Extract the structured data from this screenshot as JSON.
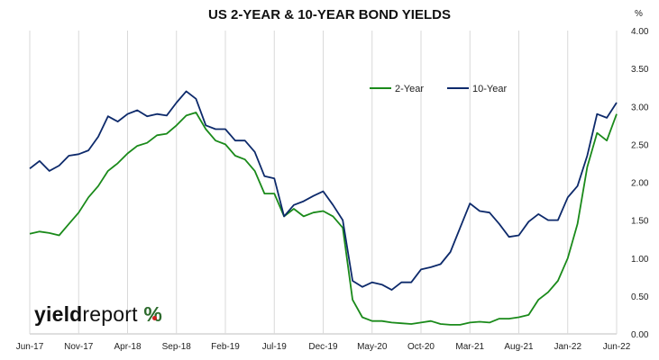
{
  "chart_data": {
    "type": "line",
    "title": "US 2-YEAR & 10-YEAR BOND YIELDS",
    "y_unit": "%",
    "xlabel": "",
    "ylabel": "",
    "ylim": [
      0,
      4
    ],
    "y_ticks": [
      "0.00",
      "0.50",
      "1.00",
      "1.50",
      "2.00",
      "2.50",
      "3.00",
      "3.50",
      "4.00"
    ],
    "x_ticks": [
      "Jun-17",
      "Nov-17",
      "Apr-18",
      "Sep-18",
      "Feb-19",
      "Jul-19",
      "Dec-19",
      "May-20",
      "Oct-20",
      "Mar-21",
      "Aug-21",
      "Jan-22",
      "Jun-22"
    ],
    "grid": "vertical only",
    "legend_position": "top-right",
    "series": [
      {
        "name": "2-Year",
        "color": "#1a8a1a",
        "points": [
          [
            "2017-06",
            1.32
          ],
          [
            "2017-07",
            1.35
          ],
          [
            "2017-08",
            1.33
          ],
          [
            "2017-09",
            1.3
          ],
          [
            "2017-10",
            1.45
          ],
          [
            "2017-11",
            1.6
          ],
          [
            "2017-12",
            1.8
          ],
          [
            "2018-01",
            1.95
          ],
          [
            "2018-02",
            2.15
          ],
          [
            "2018-03",
            2.25
          ],
          [
            "2018-04",
            2.38
          ],
          [
            "2018-05",
            2.48
          ],
          [
            "2018-06",
            2.52
          ],
          [
            "2018-07",
            2.62
          ],
          [
            "2018-08",
            2.64
          ],
          [
            "2018-09",
            2.75
          ],
          [
            "2018-10",
            2.88
          ],
          [
            "2018-11",
            2.92
          ],
          [
            "2018-12",
            2.7
          ],
          [
            "2019-01",
            2.55
          ],
          [
            "2019-02",
            2.5
          ],
          [
            "2019-03",
            2.35
          ],
          [
            "2019-04",
            2.3
          ],
          [
            "2019-05",
            2.15
          ],
          [
            "2019-06",
            1.85
          ],
          [
            "2019-07",
            1.85
          ],
          [
            "2019-08",
            1.55
          ],
          [
            "2019-09",
            1.65
          ],
          [
            "2019-10",
            1.55
          ],
          [
            "2019-11",
            1.6
          ],
          [
            "2019-12",
            1.62
          ],
          [
            "2020-01",
            1.55
          ],
          [
            "2020-02",
            1.4
          ],
          [
            "2020-03",
            0.45
          ],
          [
            "2020-04",
            0.22
          ],
          [
            "2020-05",
            0.17
          ],
          [
            "2020-06",
            0.17
          ],
          [
            "2020-07",
            0.15
          ],
          [
            "2020-08",
            0.14
          ],
          [
            "2020-09",
            0.13
          ],
          [
            "2020-10",
            0.15
          ],
          [
            "2020-11",
            0.17
          ],
          [
            "2020-12",
            0.13
          ],
          [
            "2021-01",
            0.12
          ],
          [
            "2021-02",
            0.12
          ],
          [
            "2021-03",
            0.15
          ],
          [
            "2021-04",
            0.16
          ],
          [
            "2021-05",
            0.15
          ],
          [
            "2021-06",
            0.2
          ],
          [
            "2021-07",
            0.2
          ],
          [
            "2021-08",
            0.22
          ],
          [
            "2021-09",
            0.25
          ],
          [
            "2021-10",
            0.45
          ],
          [
            "2021-11",
            0.55
          ],
          [
            "2021-12",
            0.7
          ],
          [
            "2022-01",
            1.0
          ],
          [
            "2022-02",
            1.45
          ],
          [
            "2022-03",
            2.2
          ],
          [
            "2022-04",
            2.65
          ],
          [
            "2022-05",
            2.55
          ],
          [
            "2022-06",
            2.9
          ]
        ]
      },
      {
        "name": "10-Year",
        "color": "#0d2a6b",
        "points": [
          [
            "2017-06",
            2.18
          ],
          [
            "2017-07",
            2.28
          ],
          [
            "2017-08",
            2.15
          ],
          [
            "2017-09",
            2.22
          ],
          [
            "2017-10",
            2.35
          ],
          [
            "2017-11",
            2.37
          ],
          [
            "2017-12",
            2.42
          ],
          [
            "2018-01",
            2.6
          ],
          [
            "2018-02",
            2.87
          ],
          [
            "2018-03",
            2.8
          ],
          [
            "2018-04",
            2.9
          ],
          [
            "2018-05",
            2.95
          ],
          [
            "2018-06",
            2.87
          ],
          [
            "2018-07",
            2.9
          ],
          [
            "2018-08",
            2.88
          ],
          [
            "2018-09",
            3.05
          ],
          [
            "2018-10",
            3.2
          ],
          [
            "2018-11",
            3.1
          ],
          [
            "2018-12",
            2.75
          ],
          [
            "2019-01",
            2.7
          ],
          [
            "2019-02",
            2.7
          ],
          [
            "2019-03",
            2.55
          ],
          [
            "2019-04",
            2.55
          ],
          [
            "2019-05",
            2.4
          ],
          [
            "2019-06",
            2.08
          ],
          [
            "2019-07",
            2.05
          ],
          [
            "2019-08",
            1.55
          ],
          [
            "2019-09",
            1.7
          ],
          [
            "2019-10",
            1.75
          ],
          [
            "2019-11",
            1.82
          ],
          [
            "2019-12",
            1.88
          ],
          [
            "2020-01",
            1.7
          ],
          [
            "2020-02",
            1.5
          ],
          [
            "2020-03",
            0.7
          ],
          [
            "2020-04",
            0.62
          ],
          [
            "2020-05",
            0.68
          ],
          [
            "2020-06",
            0.65
          ],
          [
            "2020-07",
            0.58
          ],
          [
            "2020-08",
            0.68
          ],
          [
            "2020-09",
            0.68
          ],
          [
            "2020-10",
            0.85
          ],
          [
            "2020-11",
            0.88
          ],
          [
            "2020-12",
            0.92
          ],
          [
            "2021-01",
            1.08
          ],
          [
            "2021-02",
            1.4
          ],
          [
            "2021-03",
            1.72
          ],
          [
            "2021-04",
            1.62
          ],
          [
            "2021-05",
            1.6
          ],
          [
            "2021-06",
            1.45
          ],
          [
            "2021-07",
            1.28
          ],
          [
            "2021-08",
            1.3
          ],
          [
            "2021-09",
            1.48
          ],
          [
            "2021-10",
            1.58
          ],
          [
            "2021-11",
            1.5
          ],
          [
            "2021-12",
            1.5
          ],
          [
            "2022-01",
            1.8
          ],
          [
            "2022-02",
            1.95
          ],
          [
            "2022-03",
            2.35
          ],
          [
            "2022-04",
            2.9
          ],
          [
            "2022-05",
            2.85
          ],
          [
            "2022-06",
            3.05
          ]
        ]
      }
    ]
  },
  "branding": {
    "bold": "yield",
    "rest": "report",
    "symbol": "%"
  }
}
